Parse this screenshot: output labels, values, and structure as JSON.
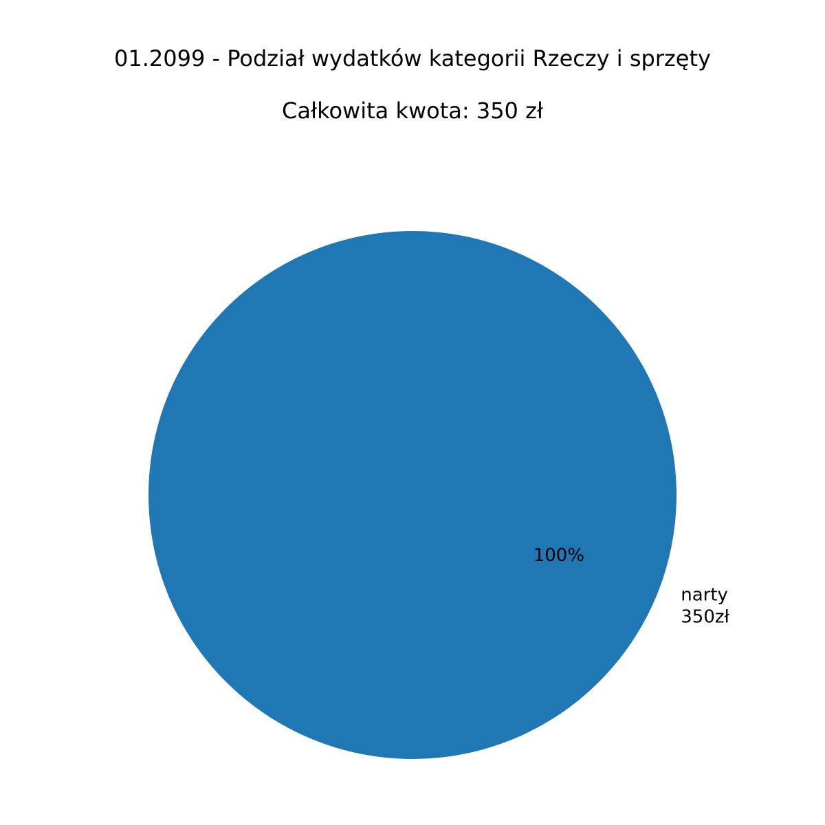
{
  "chart_data": {
    "type": "pie",
    "title": "01.2099 - Podział wydatków kategorii Rzeczy i sprzęty",
    "subtitle": "Całkowita kwota: 350 zł",
    "slices": [
      {
        "label": "narty",
        "amount_label": "350zł",
        "value": 350,
        "percent_label": "100%",
        "color": "#1f77b4"
      }
    ]
  }
}
